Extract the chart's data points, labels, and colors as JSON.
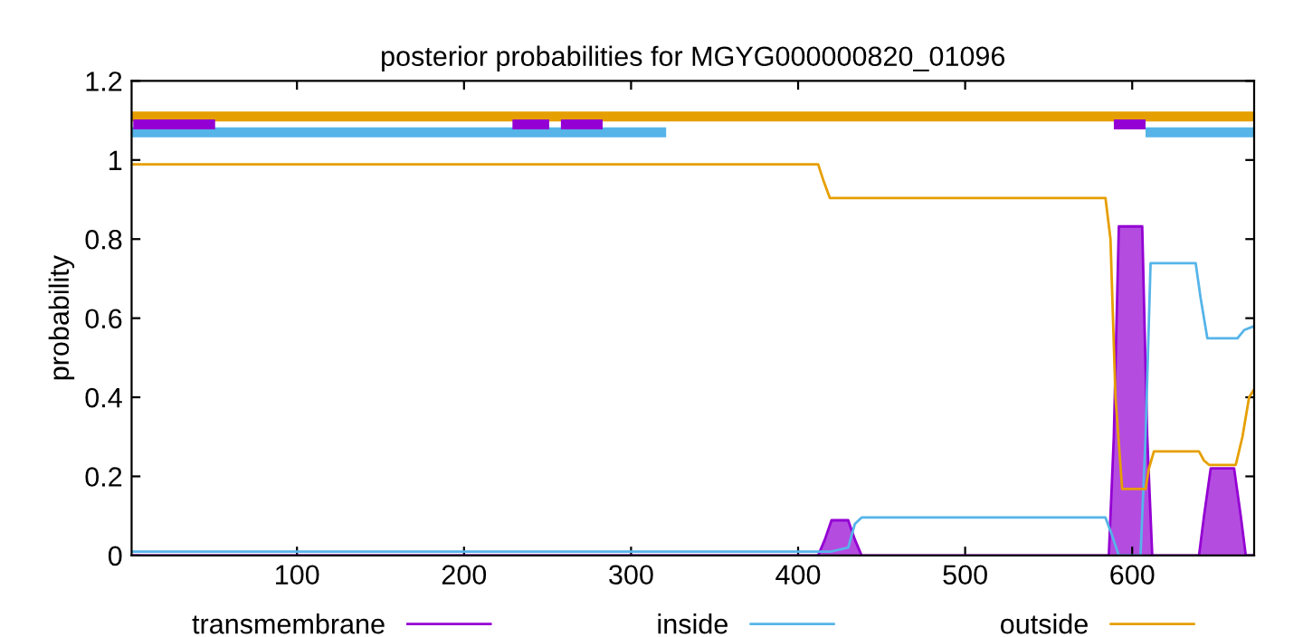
{
  "chart_data": {
    "type": "line",
    "title": "posterior probabilities for MGYG000000820_01096",
    "ylabel": "probability",
    "xlim": [
      1,
      673
    ],
    "ylim": [
      0,
      1.2
    ],
    "xticks": [
      100,
      200,
      300,
      400,
      500,
      600
    ],
    "yticks": [
      0,
      0.2,
      0.4,
      0.6,
      0.8,
      1,
      1.2
    ],
    "grid": false,
    "legend": "bottom",
    "series": [
      {
        "name": "transmembrane",
        "type": "area",
        "color": "#9400d3",
        "x": [
          1,
          412,
          416,
          420,
          430,
          434,
          438,
          586,
          589,
          592,
          606,
          609,
          612,
          640,
          643,
          647,
          661,
          665,
          668,
          673
        ],
        "values": [
          0,
          0,
          0.04,
          0.089,
          0.089,
          0.04,
          0,
          0,
          0.3,
          0.832,
          0.832,
          0.3,
          0,
          0,
          0.1,
          0.22,
          0.22,
          0.1,
          0,
          0
        ]
      },
      {
        "name": "inside",
        "color": "#56b4e9",
        "x": [
          1,
          414,
          420,
          430,
          434,
          438,
          584,
          588,
          592,
          605,
          608,
          611,
          638,
          641,
          645,
          663,
          667,
          673
        ],
        "values": [
          0.01,
          0.01,
          0.01,
          0.02,
          0.08,
          0.096,
          0.096,
          0.05,
          0,
          0,
          0.3,
          0.739,
          0.739,
          0.65,
          0.549,
          0.549,
          0.57,
          0.58
        ]
      },
      {
        "name": "outside",
        "color": "#e69f00",
        "x": [
          1,
          412,
          415,
          419,
          584,
          587,
          590,
          594,
          608,
          610,
          613,
          640,
          643,
          646,
          662,
          666,
          670,
          673
        ],
        "values": [
          0.989,
          0.989,
          0.95,
          0.904,
          0.904,
          0.8,
          0.4,
          0.168,
          0.168,
          0.22,
          0.263,
          0.263,
          0.24,
          0.229,
          0.229,
          0.3,
          0.4,
          0.42
        ]
      },
      {
        "color": "#e69f00",
        "x": [
          1,
          673
        ],
        "values": [
          1.11,
          1.11
        ]
      },
      {
        "color": "#56b4e9",
        "x": [
          1,
          321,
          322,
          608,
          673
        ],
        "values": [
          1.07,
          1.07,
          null,
          1.07,
          1.07
        ]
      },
      {
        "color": "#9400d3",
        "x": [
          2,
          51,
          52,
          229,
          251,
          252,
          258,
          283,
          284,
          589,
          608
        ],
        "values": [
          1.09,
          1.09,
          null,
          1.09,
          1.09,
          null,
          1.09,
          1.09,
          null,
          1.09,
          1.09
        ]
      }
    ]
  }
}
